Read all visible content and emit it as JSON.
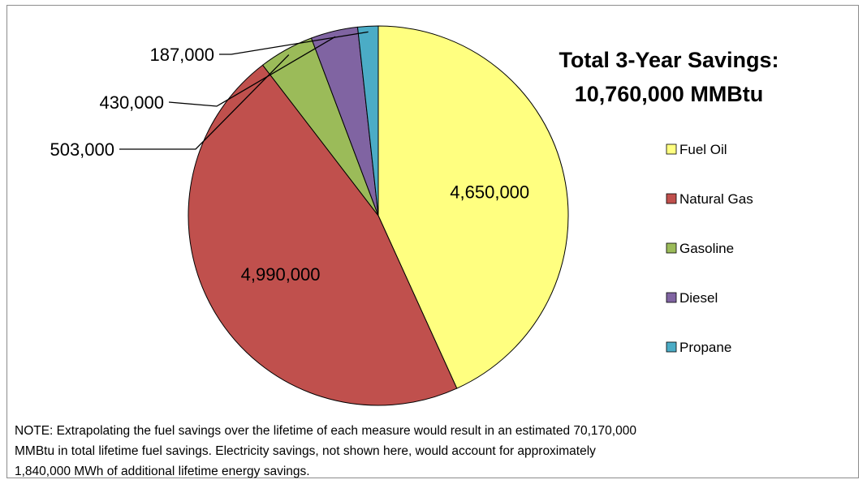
{
  "chart_data": {
    "type": "pie",
    "title_lines": [
      "Total 3-Year Savings:",
      "10,760,000 MMBtu"
    ],
    "slices": [
      {
        "label": "Fuel Oil",
        "value": 4650000,
        "display": "4,650,000",
        "color": "#FFFF80"
      },
      {
        "label": "Natural Gas",
        "value": 4990000,
        "display": "4,990,000",
        "color": "#C0504D"
      },
      {
        "label": "Gasoline",
        "value": 503000,
        "display": "503,000",
        "color": "#9BBB59"
      },
      {
        "label": "Diesel",
        "value": 430000,
        "display": "430,000",
        "color": "#8064A2"
      },
      {
        "label": "Propane",
        "value": 187000,
        "display": "187,000",
        "color": "#4BACC6"
      }
    ],
    "legend_position": "right",
    "note_lines": [
      "NOTE: Extrapolating the fuel savings over the lifetime of each measure would result in an estimated 70,170,000",
      "MMBtu in total lifetime fuel savings.  Electricity savings, not shown here, would account for approximately",
      "1,840,000  MWh of additional lifetime energy savings."
    ]
  }
}
